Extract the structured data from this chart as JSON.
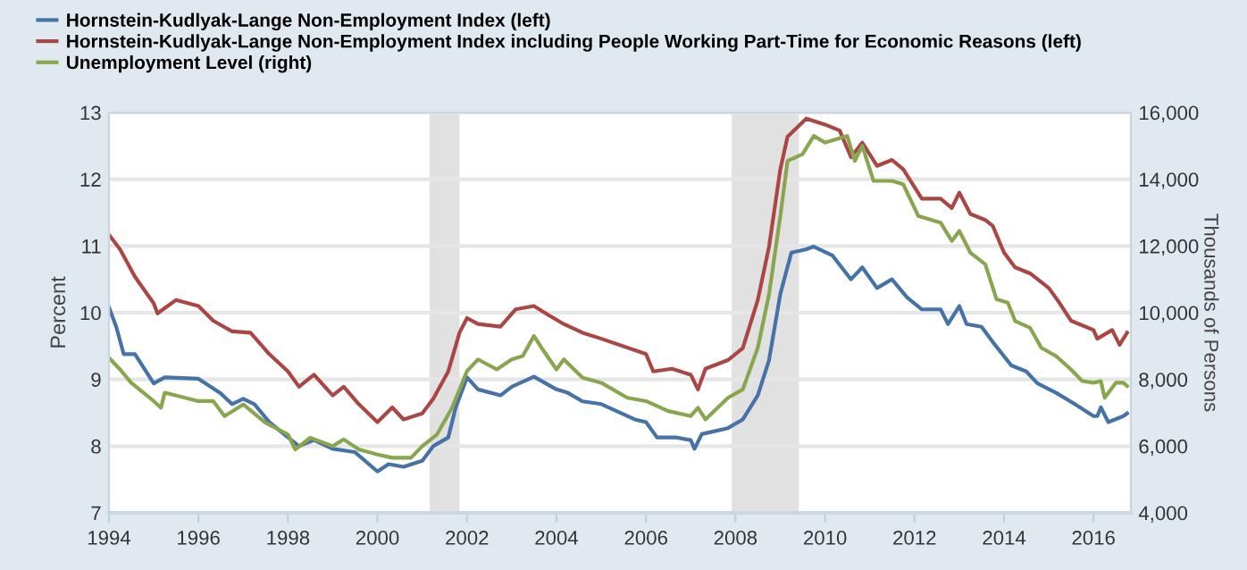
{
  "chart_data": {
    "type": "line",
    "ylabel": "Percent",
    "y2label": "Thousands of Persons",
    "xlim": [
      "1994-01-01",
      "2016-11-01"
    ],
    "xticks": [
      "1994",
      "1996",
      "1998",
      "2000",
      "2002",
      "2004",
      "2006",
      "2008",
      "2010",
      "2012",
      "2014",
      "2016"
    ],
    "ylim": [
      7,
      13
    ],
    "yticks": [
      7,
      8,
      9,
      10,
      11,
      12,
      13
    ],
    "y2lim": [
      4000,
      16000
    ],
    "y2ticks": [
      {
        "value": 4000,
        "label": "4,000"
      },
      {
        "value": 6000,
        "label": "6,000"
      },
      {
        "value": 8000,
        "label": "8,000"
      },
      {
        "value": 10000,
        "label": "10,000"
      },
      {
        "value": 12000,
        "label": "12,000"
      },
      {
        "value": 14000,
        "label": "14,000"
      },
      {
        "value": 16000,
        "label": "16,000"
      }
    ],
    "grid": "y",
    "legend": "top left",
    "line_style": "solid",
    "marker": "none",
    "bands": [
      {
        "axis": "x",
        "from": "2001-03-01",
        "to": "2001-11-01",
        "color": "#e1e1e1"
      },
      {
        "axis": "x",
        "from": "2007-12-01",
        "to": "2009-06-01",
        "color": "#e1e1e1"
      }
    ],
    "series": [
      {
        "name": "Hornstein-Kudlyak-Lange Non-Employment Index (left)",
        "color": "#4572a7",
        "x": [
          "1994-01",
          "1994-03",
          "1994-05",
          "1994-08",
          "1995-01",
          "1995-04",
          "1996-01",
          "1996-07",
          "1996-10",
          "1997-01",
          "1997-04",
          "1997-08",
          "1998-01",
          "1998-04",
          "1998-08",
          "1999-01",
          "1999-07",
          "2000-01",
          "2000-04",
          "2000-08",
          "2001-01",
          "2001-04",
          "2001-08",
          "2001-10",
          "2002-01",
          "2002-04",
          "2002-10",
          "2003-01",
          "2003-07",
          "2004-01",
          "2004-04",
          "2004-08",
          "2005-01",
          "2005-10",
          "2006-01",
          "2006-04",
          "2006-09",
          "2007-01",
          "2007-02",
          "2007-04",
          "2007-11",
          "2008-03",
          "2008-07",
          "2008-10",
          "2009-01",
          "2009-04",
          "2009-08",
          "2009-10",
          "2010-03",
          "2010-08",
          "2010-11",
          "2011-03",
          "2011-07",
          "2011-11",
          "2012-03",
          "2012-08",
          "2012-10",
          "2013-01",
          "2013-03",
          "2013-07",
          "2013-10",
          "2014-03",
          "2014-07",
          "2014-10",
          "2015-03",
          "2015-08",
          "2016-01",
          "2016-02",
          "2016-03",
          "2016-05",
          "2016-09",
          "2016-10"
        ],
        "values": [
          10.08,
          9.79,
          9.38,
          9.38,
          8.94,
          9.03,
          9.01,
          8.79,
          8.63,
          8.71,
          8.63,
          8.36,
          8.13,
          8.0,
          8.09,
          7.96,
          7.91,
          7.62,
          7.73,
          7.69,
          7.78,
          8.0,
          8.13,
          8.58,
          9.03,
          8.85,
          8.76,
          8.89,
          9.04,
          8.85,
          8.8,
          8.67,
          8.63,
          8.4,
          8.36,
          8.13,
          8.13,
          8.09,
          7.96,
          8.18,
          8.27,
          8.4,
          8.76,
          9.29,
          10.28,
          10.9,
          10.95,
          10.99,
          10.86,
          10.5,
          10.68,
          10.37,
          10.5,
          10.23,
          10.05,
          10.05,
          9.83,
          10.1,
          9.83,
          9.79,
          9.56,
          9.21,
          9.12,
          8.94,
          8.8,
          8.63,
          8.45,
          8.45,
          8.58,
          8.36,
          8.45,
          8.49
        ]
      },
      {
        "name": "Hornstein-Kudlyak-Lange Non-Employment Index including People Working Part-Time for Economic Reasons (left)",
        "color": "#aa4643",
        "x": [
          "1994-01",
          "1994-04",
          "1994-08",
          "1995-01",
          "1995-02",
          "1995-07",
          "1996-01",
          "1996-05",
          "1996-10",
          "1997-03",
          "1997-08",
          "1998-01",
          "1998-04",
          "1998-08",
          "1999-01",
          "1999-04",
          "1999-08",
          "2000-01",
          "2000-05",
          "2000-08",
          "2001-01",
          "2001-04",
          "2001-08",
          "2001-11",
          "2002-01",
          "2002-04",
          "2002-10",
          "2003-02",
          "2003-07",
          "2003-11",
          "2004-03",
          "2004-08",
          "2005-01",
          "2006-01",
          "2006-03",
          "2006-08",
          "2007-01",
          "2007-03",
          "2007-05",
          "2007-11",
          "2008-03",
          "2008-07",
          "2008-10",
          "2009-01",
          "2009-03",
          "2009-08",
          "2010-01",
          "2010-05",
          "2010-08",
          "2010-11",
          "2011-03",
          "2011-07",
          "2011-10",
          "2012-03",
          "2012-08",
          "2012-11",
          "2013-01",
          "2013-04",
          "2013-08",
          "2013-10",
          "2014-01",
          "2014-04",
          "2014-08",
          "2015-01",
          "2015-04",
          "2015-07",
          "2016-01",
          "2016-02",
          "2016-06",
          "2016-08",
          "2016-10"
        ],
        "values": [
          11.17,
          10.95,
          10.54,
          10.14,
          9.99,
          10.19,
          10.1,
          9.88,
          9.72,
          9.7,
          9.38,
          9.12,
          8.89,
          9.07,
          8.76,
          8.89,
          8.63,
          8.36,
          8.58,
          8.4,
          8.49,
          8.71,
          9.12,
          9.7,
          9.92,
          9.83,
          9.79,
          10.05,
          10.1,
          9.96,
          9.83,
          9.7,
          9.61,
          9.38,
          9.12,
          9.16,
          9.07,
          8.85,
          9.16,
          9.29,
          9.47,
          10.19,
          10.99,
          12.15,
          12.64,
          12.91,
          12.82,
          12.73,
          12.33,
          12.55,
          12.2,
          12.29,
          12.15,
          11.71,
          11.71,
          11.57,
          11.8,
          11.48,
          11.39,
          11.3,
          10.9,
          10.68,
          10.59,
          10.37,
          10.14,
          9.88,
          9.74,
          9.61,
          9.74,
          9.52,
          9.7
        ]
      },
      {
        "name": "Unemployment Level (right)",
        "color": "#89a54e",
        "axis": "y2",
        "x": [
          "1994-01",
          "1994-04",
          "1994-07",
          "1995-01",
          "1995-03",
          "1995-04",
          "1996-01",
          "1996-05",
          "1996-08",
          "1997-01",
          "1997-07",
          "1998-01",
          "1998-03",
          "1998-07",
          "1999-01",
          "1999-04",
          "1999-08",
          "2000-01",
          "2000-05",
          "2000-10",
          "2001-01",
          "2001-05",
          "2001-09",
          "2002-01",
          "2002-04",
          "2002-09",
          "2003-01",
          "2003-04",
          "2003-07",
          "2003-09",
          "2004-01",
          "2004-03",
          "2004-08",
          "2005-01",
          "2005-08",
          "2006-01",
          "2006-07",
          "2007-01",
          "2007-03",
          "2007-05",
          "2007-11",
          "2008-03",
          "2008-07",
          "2008-10",
          "2009-01",
          "2009-03",
          "2009-07",
          "2009-10",
          "2010-01",
          "2010-07",
          "2010-09",
          "2010-11",
          "2011-02",
          "2011-07",
          "2011-10",
          "2012-02",
          "2012-08",
          "2012-11",
          "2013-01",
          "2013-04",
          "2013-08",
          "2013-11",
          "2014-02",
          "2014-04",
          "2014-08",
          "2014-11",
          "2015-03",
          "2015-07",
          "2015-10",
          "2016-01",
          "2016-03",
          "2016-04",
          "2016-07",
          "2016-09",
          "2016-10"
        ],
        "values": [
          8650,
          8300,
          7900,
          7350,
          7150,
          7600,
          7350,
          7350,
          6900,
          7250,
          6700,
          6350,
          5900,
          6250,
          6000,
          6200,
          5900,
          5750,
          5650,
          5650,
          6000,
          6350,
          7150,
          8250,
          8600,
          8300,
          8600,
          8700,
          9300,
          8950,
          8300,
          8600,
          8050,
          7900,
          7450,
          7350,
          7050,
          6900,
          7150,
          6800,
          7450,
          7700,
          8950,
          10550,
          12900,
          14550,
          14750,
          15300,
          15100,
          15300,
          14550,
          15000,
          13950,
          13950,
          13850,
          12900,
          12700,
          12150,
          12450,
          11800,
          11450,
          10400,
          10300,
          9750,
          9550,
          8950,
          8700,
          8300,
          7950,
          7900,
          7950,
          7450,
          7900,
          7900,
          7800
        ]
      }
    ]
  }
}
